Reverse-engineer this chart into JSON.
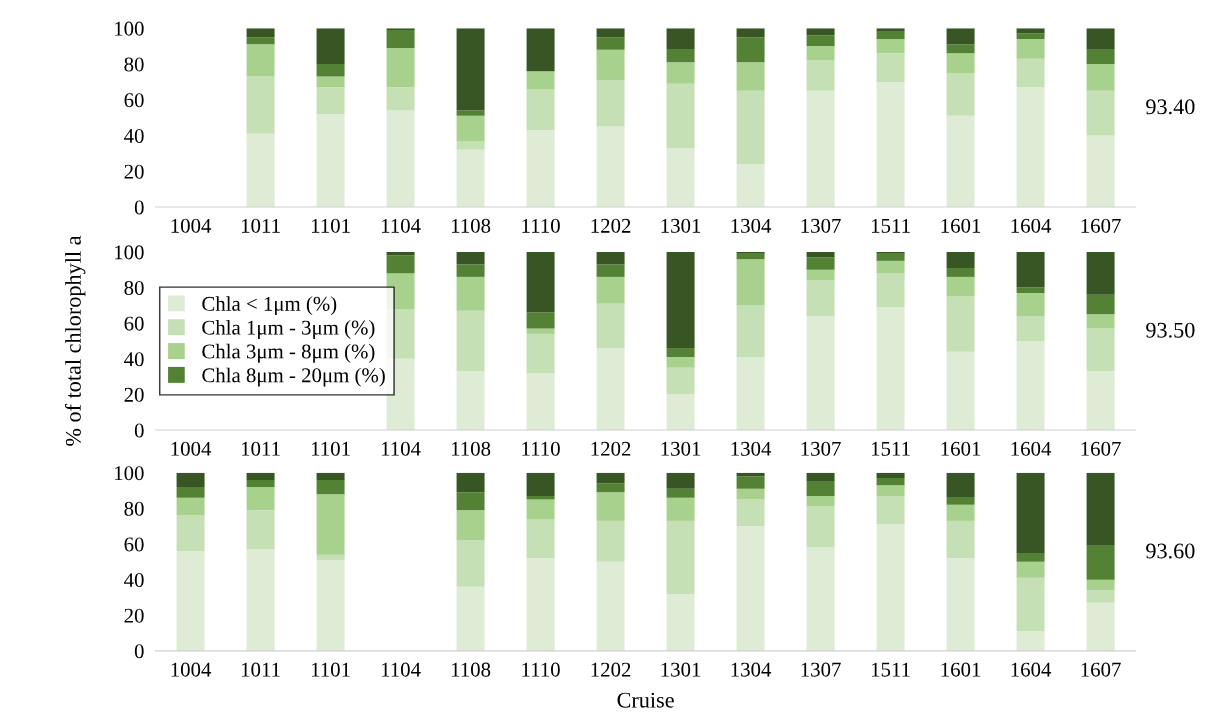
{
  "chart_data": [
    {
      "type": "bar",
      "stacked": true,
      "categories": [
        "1004",
        "1011",
        "1101",
        "1104",
        "1108",
        "1110",
        "1202",
        "1301",
        "1304",
        "1307",
        "1511",
        "1601",
        "1604",
        "1607"
      ],
      "ylim": [
        0,
        100
      ],
      "yticks": [
        0,
        20,
        40,
        60,
        80,
        100
      ],
      "grid": false,
      "legend": false,
      "annotations": [
        "93.40"
      ],
      "series": [
        {
          "color": "#deebd5",
          "values": [
            null,
            41,
            52,
            54,
            32,
            43,
            45,
            33,
            24,
            65,
            70,
            51,
            67,
            40
          ]
        },
        {
          "color": "#c5e0b4",
          "values": [
            null,
            32,
            15,
            13,
            5,
            23,
            26,
            36,
            41,
            17,
            16,
            24,
            16,
            25
          ]
        },
        {
          "color": "#a9d18e",
          "values": [
            null,
            18,
            6,
            22,
            14,
            10,
            17,
            12,
            16,
            8,
            8,
            11,
            11,
            15
          ]
        },
        {
          "color": "#548235",
          "values": [
            null,
            4,
            7,
            10,
            3,
            0,
            7,
            7,
            14,
            6,
            4,
            5,
            3,
            8
          ]
        },
        {
          "color": "#375623",
          "values": [
            null,
            5,
            20,
            1,
            46,
            24,
            5,
            12,
            5,
            4,
            2,
            9,
            3,
            12
          ]
        }
      ]
    },
    {
      "type": "bar",
      "stacked": true,
      "categories": [
        "1004",
        "1011",
        "1101",
        "1104",
        "1108",
        "1110",
        "1202",
        "1301",
        "1304",
        "1307",
        "1511",
        "1601",
        "1604",
        "1607"
      ],
      "ylim": [
        0,
        100
      ],
      "yticks": [
        0,
        20,
        40,
        60,
        80,
        100
      ],
      "grid": false,
      "legend": "left",
      "ylabel": "% of total chlorophyll a",
      "annotations": [
        "93.50"
      ],
      "series": [
        {
          "name": "Chla < 1μm (%)",
          "color": "#deebd5",
          "values": [
            null,
            null,
            null,
            40,
            33,
            32,
            46,
            20,
            41,
            64,
            69,
            44,
            50,
            33
          ]
        },
        {
          "name": "Chla 1μm - 3μm (%)",
          "color": "#c5e0b4",
          "values": [
            null,
            null,
            null,
            28,
            34,
            22,
            25,
            15,
            29,
            20,
            19,
            31,
            14,
            24
          ]
        },
        {
          "name": "Chla 3μm - 8μm (%)",
          "color": "#a9d18e",
          "values": [
            null,
            null,
            null,
            20,
            19,
            3,
            15,
            6,
            26,
            6,
            7,
            11,
            13,
            8
          ]
        },
        {
          "name": "Chla 8μm - 20μm (%)",
          "color": "#548235",
          "values": [
            null,
            null,
            null,
            10,
            7,
            9,
            7,
            5,
            3,
            7,
            4,
            5,
            3,
            11
          ]
        },
        {
          "color": "#375623",
          "values": [
            null,
            null,
            null,
            2,
            7,
            34,
            7,
            54,
            1,
            3,
            1,
            9,
            20,
            24
          ]
        }
      ]
    },
    {
      "type": "bar",
      "stacked": true,
      "categories": [
        "1004",
        "1011",
        "1101",
        "1104",
        "1108",
        "1110",
        "1202",
        "1301",
        "1304",
        "1307",
        "1511",
        "1601",
        "1604",
        "1607"
      ],
      "ylim": [
        0,
        100
      ],
      "yticks": [
        0,
        20,
        40,
        60,
        80,
        100
      ],
      "grid": false,
      "legend": false,
      "xlabel": "Cruise",
      "annotations": [
        "93.60"
      ],
      "series": [
        {
          "color": "#deebd5",
          "values": [
            56,
            57,
            51,
            null,
            36,
            52,
            50,
            32,
            70,
            58,
            71,
            52,
            11,
            27
          ]
        },
        {
          "color": "#c5e0b4",
          "values": [
            20,
            22,
            3,
            null,
            26,
            22,
            23,
            41,
            15,
            23,
            16,
            21,
            30,
            7
          ]
        },
        {
          "color": "#a9d18e",
          "values": [
            10,
            13,
            34,
            null,
            17,
            11,
            16,
            13,
            6,
            6,
            6,
            9,
            9,
            6
          ]
        },
        {
          "color": "#548235",
          "values": [
            6,
            4,
            8,
            null,
            10,
            2,
            5,
            5,
            7,
            8,
            4,
            4,
            5,
            19
          ]
        },
        {
          "color": "#375623",
          "values": [
            8,
            4,
            4,
            null,
            11,
            13,
            6,
            9,
            2,
            5,
            3,
            14,
            45,
            41
          ]
        }
      ]
    }
  ]
}
